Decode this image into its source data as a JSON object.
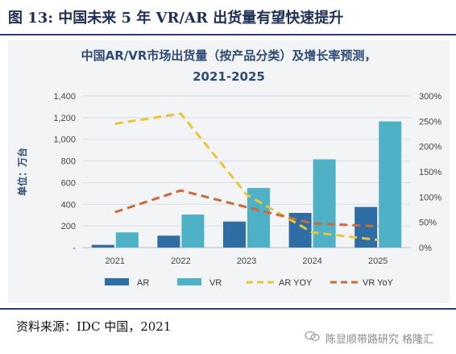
{
  "figure_title": "图 13:  中国未来 5 年 VR/AR 出货量有望快速提升",
  "source_text": "资料来源：IDC 中国，2021",
  "watermark_text": "陈显顺带路研究 格隆汇",
  "chart_data": {
    "type": "bar",
    "title_line1": "中国AR/VR市场出货量（按产品分类）及增长率预测，",
    "title_line2": "2021-2025",
    "ylabel": "单位：万台",
    "categories": [
      "2021",
      "2022",
      "2023",
      "2024",
      "2025"
    ],
    "ylim": [
      0,
      1400
    ],
    "y2lim": [
      0,
      300
    ],
    "yticks": [
      "-",
      "200",
      "400",
      "600",
      "800",
      "1,000",
      "1,200",
      "1,400"
    ],
    "y2ticks": [
      "0%",
      "50%",
      "100%",
      "150%",
      "200%",
      "250%",
      "300%"
    ],
    "series": [
      {
        "name": "AR",
        "kind": "bar",
        "color": "#2f6ea4",
        "values": [
          25,
          110,
          240,
          320,
          375
        ]
      },
      {
        "name": "VR",
        "kind": "bar",
        "color": "#4fb1c6",
        "values": [
          140,
          305,
          550,
          815,
          1165
        ]
      },
      {
        "name": "AR YOY",
        "kind": "line",
        "color": "#e6c63a",
        "dash": "dashed",
        "axis": "right",
        "values": [
          245,
          265,
          105,
          30,
          15
        ]
      },
      {
        "name": "VR YoY",
        "kind": "line",
        "color": "#c96a3b",
        "dash": "dashed",
        "axis": "right",
        "values": [
          70,
          113,
          80,
          48,
          42
        ]
      }
    ],
    "legend_position": "bottom",
    "grid": true
  }
}
